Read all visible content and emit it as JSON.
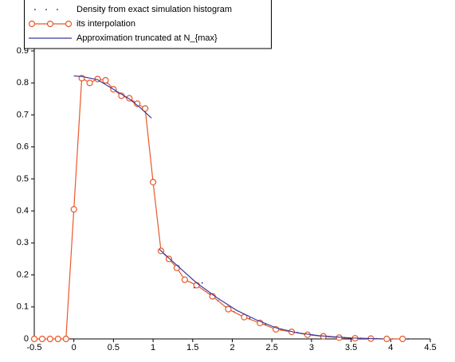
{
  "chart_data": {
    "type": "line",
    "xlim": [
      -0.5,
      4.5
    ],
    "ylim": [
      0,
      0.9
    ],
    "xticks": [
      -0.5,
      0,
      0.5,
      1,
      1.5,
      2,
      2.5,
      3,
      3.5,
      4,
      4.5
    ],
    "yticks": [
      0,
      0.1,
      0.2,
      0.3,
      0.4,
      0.5,
      0.6,
      0.7,
      0.8,
      0.9
    ],
    "legend": "upper left",
    "series": [
      {
        "name": "Density from exact simulation histogram",
        "color": "#1a1a8c",
        "style": "dots",
        "x": [
          0.02,
          0.12,
          0.22,
          0.32,
          0.42,
          0.52,
          0.62,
          0.72,
          0.82,
          0.92,
          1.12,
          1.22,
          1.32,
          1.42,
          1.52,
          1.62,
          1.72,
          1.82,
          1.92,
          2.02,
          2.22,
          2.42,
          2.62,
          2.82,
          3.02,
          3.22,
          3.42,
          3.62,
          3.82,
          4.02,
          4.22
        ],
        "values": [
          0.408,
          0.81,
          0.805,
          0.815,
          0.8,
          0.775,
          0.765,
          0.745,
          0.73,
          0.715,
          0.27,
          0.245,
          0.22,
          0.19,
          0.16,
          0.175,
          0.14,
          0.12,
          0.1,
          0.085,
          0.065,
          0.045,
          0.03,
          0.02,
          0.012,
          0.007,
          0.004,
          0.002,
          0.001,
          0,
          0
        ]
      },
      {
        "name": "its interpolation",
        "color": "#e8582a",
        "style": "line-circle",
        "x": [
          -0.5,
          -0.4,
          -0.3,
          -0.2,
          -0.1,
          0,
          0.1,
          0.2,
          0.3,
          0.4,
          0.5,
          0.6,
          0.7,
          0.8,
          0.9,
          1.0,
          1.1,
          1.2,
          1.3,
          1.4,
          1.55,
          1.75,
          1.95,
          2.15,
          2.35,
          2.55,
          2.75,
          2.95,
          3.15,
          3.35,
          3.55,
          3.75,
          3.95,
          4.15
        ],
        "values": [
          0,
          0,
          0,
          0,
          0,
          0.405,
          0.815,
          0.8,
          0.812,
          0.808,
          0.78,
          0.76,
          0.752,
          0.735,
          0.72,
          0.49,
          0.275,
          0.25,
          0.222,
          0.185,
          0.168,
          0.133,
          0.093,
          0.068,
          0.05,
          0.03,
          0.022,
          0.013,
          0.008,
          0.004,
          0.002,
          0.001,
          0,
          0
        ]
      },
      {
        "name": "Approximation truncated at N_{max}",
        "color": "#3a3a9a",
        "style": "line",
        "x": [
          0,
          0.1,
          0.3,
          0.5,
          0.7,
          0.85,
          0.98,
          1.03,
          1.08,
          1.3,
          1.55,
          1.8,
          2.05,
          2.3,
          2.55,
          2.8,
          3.1,
          3.5,
          3.9
        ],
        "values": [
          0.822,
          0.82,
          0.81,
          0.78,
          0.75,
          0.72,
          0.69,
          null,
          0.28,
          0.23,
          0.175,
          0.13,
          0.09,
          0.06,
          0.035,
          0.02,
          0.01,
          0.003,
          0
        ]
      }
    ]
  }
}
